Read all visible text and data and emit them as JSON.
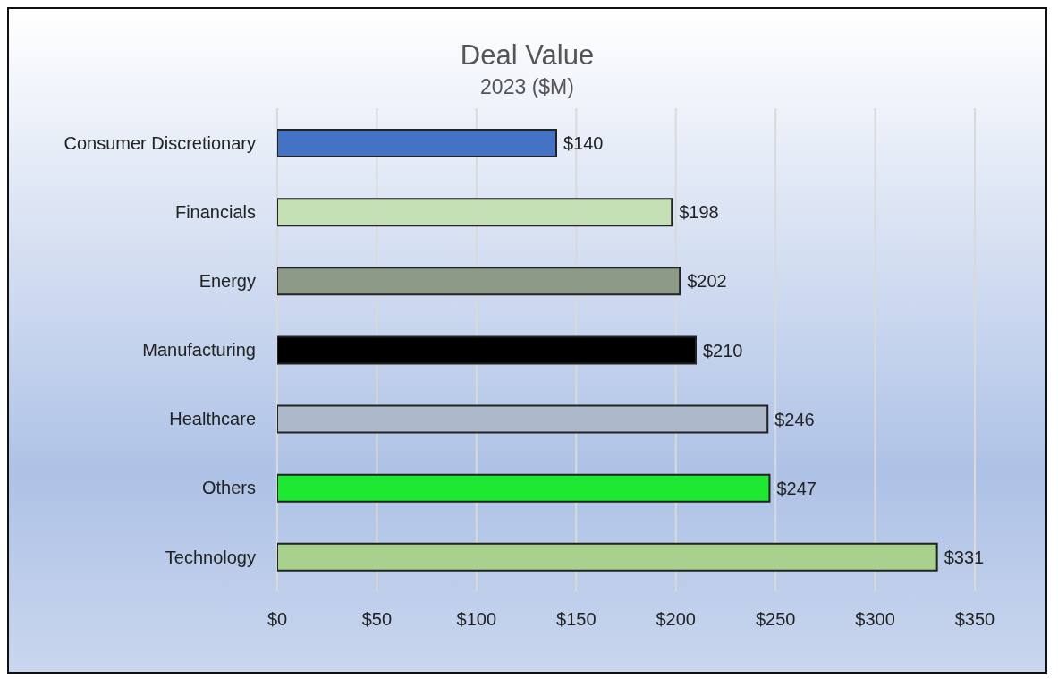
{
  "chart_data": {
    "type": "bar",
    "orientation": "horizontal",
    "title": "Deal Value",
    "subtitle": "2023 ($M)",
    "categories": [
      "Consumer Discretionary",
      "Financials",
      "Energy",
      "Manufacturing",
      "Healthcare",
      "Others",
      "Technology"
    ],
    "values": [
      140,
      198,
      202,
      210,
      246,
      247,
      331
    ],
    "colors": [
      "#4472c4",
      "#c5e0b4",
      "#8e9a88",
      "#000000",
      "#adb9ca",
      "#1ee832",
      "#a9d18e"
    ],
    "value_labels": [
      "$140",
      "$198",
      "$202",
      "$210",
      "$246",
      "$247",
      "$331"
    ],
    "xlim": [
      0,
      350
    ],
    "xticks": [
      {
        "value": 0,
        "label": "$0"
      },
      {
        "value": 50,
        "label": "$50"
      },
      {
        "value": 100,
        "label": "$100"
      },
      {
        "value": 150,
        "label": "$150"
      },
      {
        "value": 200,
        "label": "$200"
      },
      {
        "value": 250,
        "label": "$250"
      },
      {
        "value": 300,
        "label": "$300"
      },
      {
        "value": 350,
        "label": "$350"
      }
    ],
    "grid": "x"
  }
}
